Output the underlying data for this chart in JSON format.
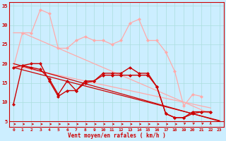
{
  "x": [
    0,
    1,
    2,
    3,
    4,
    5,
    6,
    7,
    8,
    9,
    10,
    11,
    12,
    13,
    14,
    15,
    16,
    17,
    18,
    19,
    20,
    21,
    22,
    23
  ],
  "line1_dark": [
    19,
    19.5,
    19,
    18.5,
    16,
    12,
    15.5,
    13,
    15.5,
    15.5,
    17.5,
    17.5,
    17.5,
    19,
    17.5,
    17.5,
    14,
    7,
    6,
    6,
    7.5,
    7.5,
    7.5,
    null
  ],
  "line2_dark": [
    9.5,
    19.5,
    20,
    20,
    15.5,
    11.5,
    13,
    13,
    15,
    15.5,
    17,
    17,
    17,
    17,
    17,
    17,
    14,
    7,
    6,
    6,
    7,
    7.5,
    7.5,
    null
  ],
  "line3_light": [
    19,
    28,
    28,
    34,
    33,
    24,
    24,
    26,
    27,
    26,
    26,
    25,
    26,
    30.5,
    31.5,
    26,
    26,
    23,
    18,
    9,
    12,
    11.5,
    null,
    null
  ],
  "line4_light": [
    28,
    28,
    27,
    26,
    25,
    24,
    23,
    22,
    21,
    20,
    19,
    18,
    17,
    16,
    15,
    14,
    13,
    12,
    11,
    10,
    9,
    8,
    7,
    null
  ],
  "line5_light": [
    19,
    19,
    18.5,
    18,
    17.5,
    17,
    16.5,
    16,
    15.5,
    15,
    14.5,
    14,
    13.5,
    13,
    12.5,
    12,
    11.5,
    11,
    10.5,
    10,
    9.5,
    9,
    8.5,
    null
  ],
  "trend1_dark": [
    20.0,
    19.35,
    18.7,
    18.05,
    17.4,
    16.75,
    16.1,
    15.45,
    14.8,
    14.15,
    13.5,
    12.85,
    12.2,
    11.55,
    10.9,
    10.25,
    9.6,
    8.95,
    8.3,
    7.65,
    7.0,
    6.35,
    5.7,
    5.05
  ],
  "trend2_dark": [
    19.0,
    18.4,
    17.8,
    17.2,
    16.6,
    16.0,
    15.4,
    14.8,
    14.2,
    13.6,
    13.0,
    12.4,
    11.8,
    11.2,
    10.6,
    10.0,
    9.4,
    8.8,
    8.2,
    7.6,
    7.0,
    6.4,
    5.8,
    5.2
  ],
  "wind_angles": [
    90,
    90,
    90,
    90,
    80,
    90,
    80,
    90,
    90,
    90,
    90,
    90,
    80,
    90,
    90,
    90,
    90,
    90,
    90,
    45,
    45,
    45,
    0
  ],
  "color_dark": "#cc0000",
  "color_light": "#ffaaaa",
  "bg_color": "#cceeff",
  "grid_color": "#aadddd",
  "xlabel": "Vent moyen/en rafales ( km/h )",
  "ylim": [
    3.5,
    36
  ],
  "xlim": [
    -0.5,
    23.5
  ],
  "yticks": [
    5,
    10,
    15,
    20,
    25,
    30,
    35
  ],
  "xticks": [
    0,
    1,
    2,
    3,
    4,
    5,
    6,
    7,
    8,
    9,
    10,
    11,
    12,
    13,
    14,
    15,
    16,
    17,
    18,
    19,
    20,
    21,
    22,
    23
  ]
}
